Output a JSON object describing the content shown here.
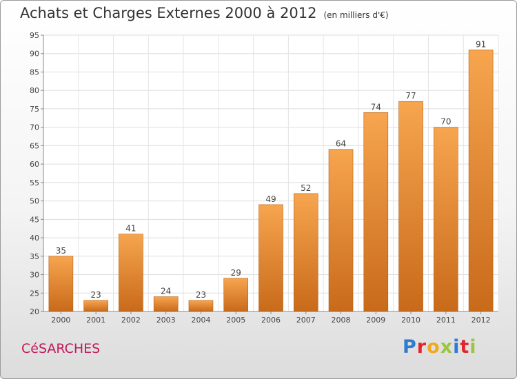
{
  "header": {
    "title": "Achats et Charges Externes 2000 à 2012",
    "unit": "(en milliers d'€)"
  },
  "footer": {
    "city": "CéSARCHES",
    "logo_letters": [
      "P",
      "r",
      "o",
      "x",
      "i",
      "t",
      "i"
    ]
  },
  "colors": {
    "bar_light": "#f7a54f",
    "bar_dark": "#c86a1a",
    "logo": [
      "#2e7bd1",
      "#e2252d",
      "#f2a81d",
      "#9bc53d",
      "#2e7bd1",
      "#e2252d",
      "#9bc53d"
    ]
  },
  "chart_data": {
    "type": "bar",
    "title": "Achats et Charges Externes 2000 à 2012",
    "subtitle": "(en milliers d'€)",
    "categories": [
      "2000",
      "2001",
      "2002",
      "2003",
      "2004",
      "2005",
      "2006",
      "2007",
      "2008",
      "2009",
      "2010",
      "2011",
      "2012"
    ],
    "values": [
      35,
      23,
      41,
      24,
      23,
      29,
      49,
      52,
      64,
      74,
      77,
      70,
      91
    ],
    "ylim": [
      20,
      95
    ],
    "yticks": [
      20,
      25,
      30,
      35,
      40,
      45,
      50,
      55,
      60,
      65,
      70,
      75,
      80,
      85,
      90,
      95
    ],
    "grid": true,
    "data_labels": true
  }
}
